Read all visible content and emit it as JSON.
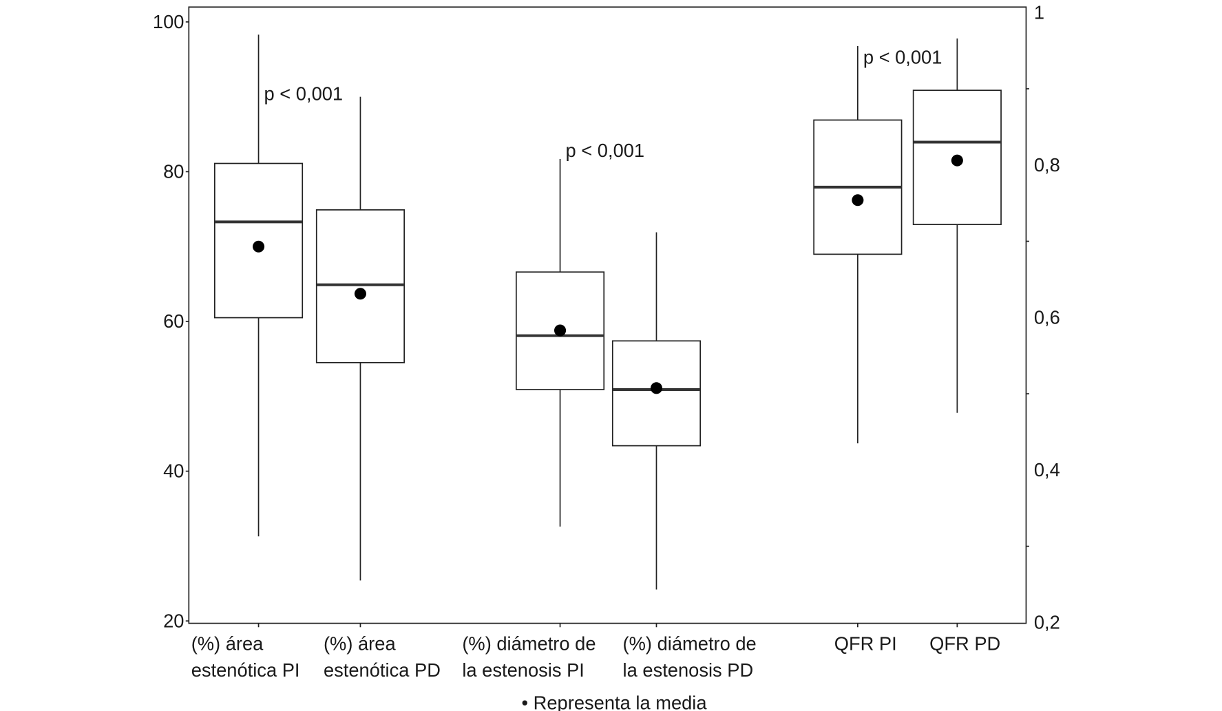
{
  "chart_data": {
    "type": "box",
    "title": "",
    "xlabel": "",
    "ylabel": "",
    "left_axis": {
      "ylim": [
        20,
        100
      ],
      "ticks": [
        "20",
        "40",
        "60",
        "80",
        "100"
      ]
    },
    "right_axis": {
      "ylim": [
        0.2,
        1
      ],
      "ticks": [
        "0,2",
        "0,4",
        "0,6",
        "0,8",
        "1"
      ]
    },
    "grid": false,
    "categories": [
      {
        "lines": [
          "(%) área",
          "estenótica PI"
        ],
        "axis": "left",
        "whisker_low": 31.3,
        "q1": 60.5,
        "median": 73.3,
        "q3": 81.1,
        "whisker_high": 98.3,
        "mean": 70.0
      },
      {
        "lines": [
          "(%) área",
          "estenótica PD"
        ],
        "axis": "left",
        "whisker_low": 25.4,
        "q1": 54.5,
        "median": 64.9,
        "q3": 74.9,
        "whisker_high": 90.0,
        "mean": 63.7
      },
      {
        "lines": [
          "(%) diámetro de",
          "la estenosis PI"
        ],
        "axis": "left",
        "whisker_low": 32.6,
        "q1": 50.9,
        "median": 58.1,
        "q3": 66.6,
        "whisker_high": 81.7,
        "mean": 58.8
      },
      {
        "lines": [
          "(%) diámetro de",
          "la estenosis PD"
        ],
        "axis": "left",
        "whisker_low": 24.2,
        "q1": 43.4,
        "median": 50.9,
        "q3": 57.4,
        "whisker_high": 71.9,
        "mean": 51.1
      },
      {
        "lines": [
          "QFR PI"
        ],
        "axis": "right",
        "whisker_low": 0.435,
        "q1": 0.683,
        "median": 0.771,
        "q3": 0.859,
        "whisker_high": 0.956,
        "mean": 0.754
      },
      {
        "lines": [
          "QFR PD"
        ],
        "axis": "right",
        "whisker_low": 0.475,
        "q1": 0.722,
        "median": 0.83,
        "q3": 0.898,
        "whisker_high": 0.966,
        "mean": 0.806
      }
    ],
    "annotations": [
      {
        "text": "p < 0,001",
        "category": 0,
        "axis": "left",
        "y": 90.4
      },
      {
        "text": "p < 0,001",
        "category": 2,
        "axis": "left",
        "y": 82.8
      },
      {
        "text": "p < 0,001",
        "category": 4,
        "axis": "right",
        "y": 0.941
      }
    ],
    "legend_note": "• Representa la media",
    "colors": {
      "box": "#222222",
      "median": "#333333",
      "mean": "#000000"
    }
  }
}
